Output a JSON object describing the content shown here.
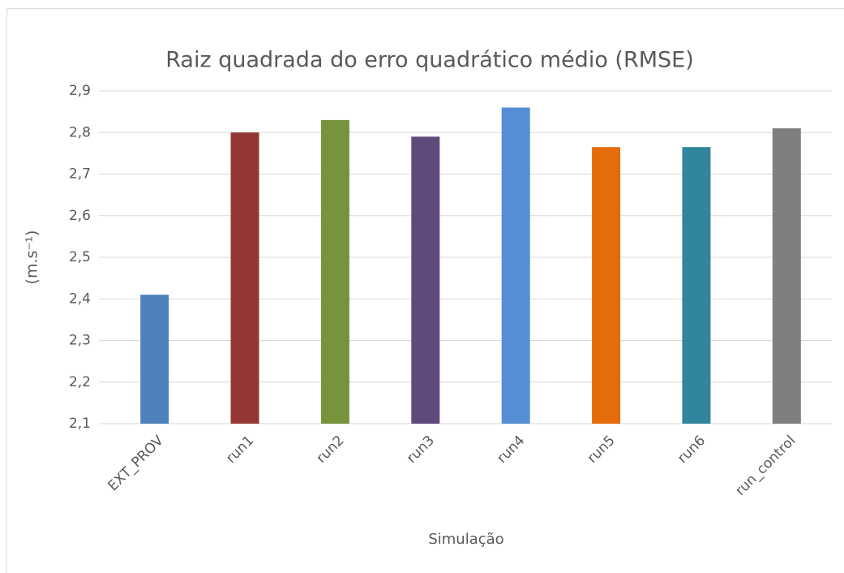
{
  "chart_data": {
    "type": "bar",
    "title": "Raiz quadrada do erro quadrático médio (RMSE)",
    "x_label": "Simulação",
    "y_label": "(m.s⁻¹)",
    "categories": [
      "EXT_PROV",
      "run1",
      "run2",
      "run3",
      "run4",
      "run5",
      "run6",
      "run_control"
    ],
    "values": [
      2.41,
      2.8,
      2.83,
      2.79,
      2.86,
      2.765,
      2.765,
      2.81
    ],
    "colors": [
      "#4f81bd",
      "#953735",
      "#77933c",
      "#604a7b",
      "#558ed5",
      "#e46c0a",
      "#31859c",
      "#7f7f7f"
    ],
    "ylim": [
      2.1,
      2.9
    ],
    "yticks": [
      {
        "value": 2.1,
        "label": "2,1"
      },
      {
        "value": 2.2,
        "label": "2,2"
      },
      {
        "value": 2.3,
        "label": "2,3"
      },
      {
        "value": 2.4,
        "label": "2,4"
      },
      {
        "value": 2.5,
        "label": "2,5"
      },
      {
        "value": 2.6,
        "label": "2,6"
      },
      {
        "value": 2.7,
        "label": "2,7"
      },
      {
        "value": 2.8,
        "label": "2,8"
      },
      {
        "value": 2.9,
        "label": "2,9"
      }
    ],
    "grid": true
  }
}
